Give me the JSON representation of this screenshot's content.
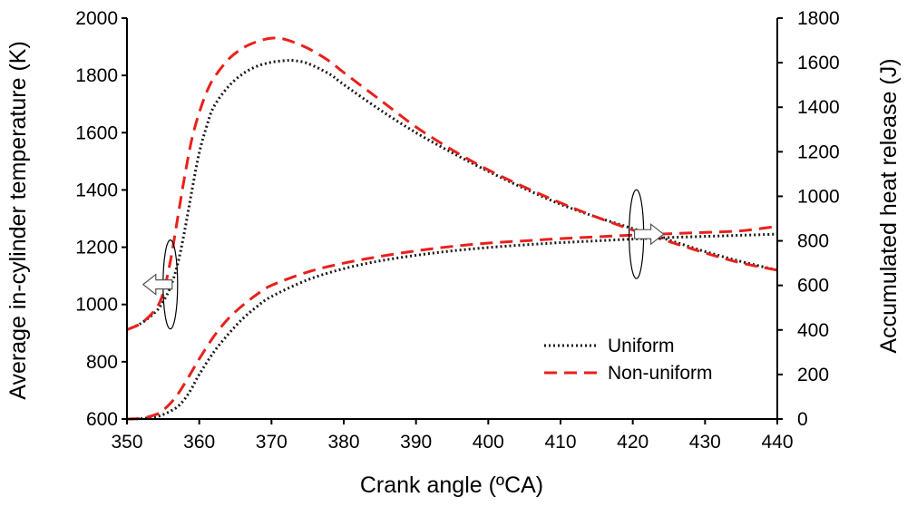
{
  "chart_data": {
    "type": "line",
    "title": "",
    "xlabel": "Crank angle (ºCA)",
    "ylabel": "Average in-cylinder temperature (K)",
    "y2label": "Accumulated heat release (J)",
    "xlim": [
      350,
      440
    ],
    "ylim": [
      600,
      2000
    ],
    "y2lim": [
      0,
      1800
    ],
    "xticks": [
      350,
      360,
      370,
      380,
      390,
      400,
      410,
      420,
      430,
      440
    ],
    "yticks": [
      600,
      800,
      1000,
      1200,
      1400,
      1600,
      1800,
      2000
    ],
    "y2ticks": [
      0,
      200,
      400,
      600,
      800,
      1000,
      1200,
      1400,
      1600,
      1800
    ],
    "grid": false,
    "legend": {
      "position": "lower-right",
      "entries": [
        {
          "name": "Uniform",
          "style": "dotted",
          "color": "#1a1a1a"
        },
        {
          "name": "Non-uniform",
          "style": "dashed",
          "color": "#e8211c"
        }
      ]
    },
    "series": [
      {
        "name": "Uniform",
        "quantity": "temperature",
        "axis": "left",
        "style": "dotted",
        "color": "#1a1a1a",
        "x": [
          350,
          352,
          354,
          355,
          356,
          357,
          358,
          359,
          360,
          361,
          362,
          364,
          366,
          368,
          370,
          372,
          373,
          375,
          378,
          380,
          385,
          390,
          395,
          400,
          405,
          410,
          415,
          420,
          425,
          430,
          435,
          440
        ],
        "y": [
          912,
          935,
          975,
          1010,
          1060,
          1140,
          1260,
          1400,
          1530,
          1620,
          1690,
          1760,
          1805,
          1832,
          1846,
          1852,
          1852,
          1842,
          1805,
          1768,
          1680,
          1600,
          1530,
          1465,
          1405,
          1350,
          1305,
          1265,
          1225,
          1185,
          1150,
          1120
        ]
      },
      {
        "name": "Non-uniform",
        "quantity": "temperature",
        "axis": "left",
        "style": "dashed",
        "color": "#e8211c",
        "x": [
          350,
          352,
          354,
          355,
          356,
          357,
          358,
          359,
          360,
          361,
          362,
          364,
          366,
          368,
          370,
          372,
          375,
          378,
          380,
          385,
          390,
          395,
          400,
          405,
          410,
          415,
          420,
          425,
          430,
          435,
          440
        ],
        "y": [
          912,
          935,
          985,
          1040,
          1150,
          1300,
          1450,
          1580,
          1670,
          1740,
          1790,
          1855,
          1895,
          1918,
          1930,
          1925,
          1895,
          1850,
          1810,
          1715,
          1620,
          1540,
          1470,
          1410,
          1355,
          1305,
          1260,
          1220,
          1180,
          1145,
          1120
        ]
      },
      {
        "name": "Uniform",
        "quantity": "heat release",
        "axis": "right",
        "style": "dotted",
        "color": "#1a1a1a",
        "x": [
          350,
          352,
          354,
          355,
          356,
          357,
          358,
          359,
          360,
          362,
          364,
          366,
          368,
          370,
          375,
          380,
          385,
          390,
          395,
          400,
          405,
          410,
          415,
          420,
          425,
          430,
          435,
          440
        ],
        "y": [
          0,
          2,
          10,
          20,
          35,
          55,
          90,
          140,
          200,
          300,
          380,
          450,
          505,
          550,
          625,
          675,
          710,
          735,
          755,
          770,
          782,
          792,
          800,
          808,
          815,
          820,
          825,
          830
        ]
      },
      {
        "name": "Non-uniform",
        "quantity": "heat release",
        "axis": "right",
        "style": "dashed",
        "color": "#e8211c",
        "x": [
          350,
          352,
          354,
          355,
          356,
          357,
          358,
          359,
          360,
          362,
          364,
          366,
          368,
          370,
          375,
          380,
          385,
          390,
          395,
          400,
          405,
          410,
          415,
          420,
          425,
          430,
          435,
          440
        ],
        "y": [
          0,
          3,
          20,
          40,
          70,
          110,
          160,
          215,
          270,
          370,
          450,
          510,
          560,
          600,
          660,
          700,
          730,
          755,
          775,
          790,
          800,
          810,
          818,
          826,
          832,
          838,
          845,
          865
        ]
      }
    ],
    "annotations": [
      {
        "type": "ellipse-with-arrow",
        "at": {
          "x": 356,
          "y": 1070,
          "axis": "left"
        },
        "arrow": "left",
        "meaning": "curves read on left axis"
      },
      {
        "type": "ellipse-with-arrow",
        "at": {
          "x": 420.5,
          "y": 830,
          "axis": "right"
        },
        "arrow": "right",
        "meaning": "curves read on right axis"
      }
    ]
  }
}
